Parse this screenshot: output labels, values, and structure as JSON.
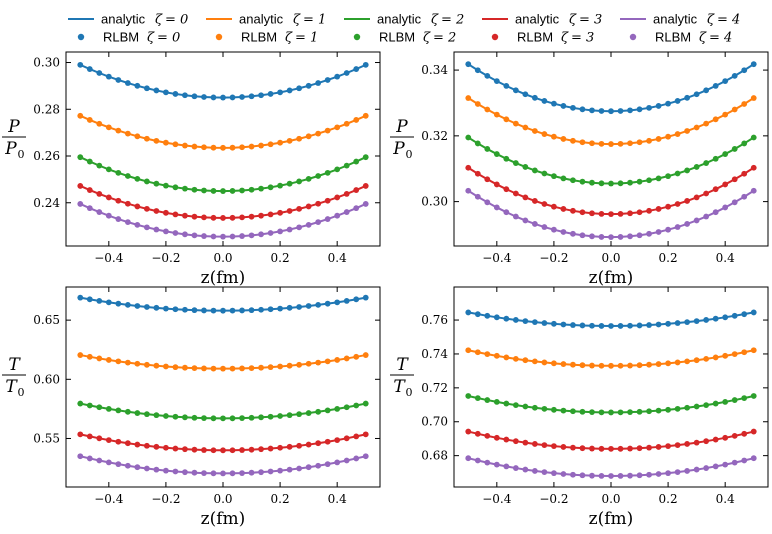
{
  "legend": {
    "entries": [
      {
        "kind": "analytic",
        "label": "analytic",
        "symbol": "ζ",
        "value": "= 0",
        "color": "#1f77b4"
      },
      {
        "kind": "analytic",
        "label": "analytic",
        "symbol": "ζ",
        "value": "= 1",
        "color": "#ff7f0e"
      },
      {
        "kind": "analytic",
        "label": "analytic",
        "symbol": "ζ",
        "value": "= 2",
        "color": "#2ca02c"
      },
      {
        "kind": "analytic",
        "label": "analytic",
        "symbol": "ζ",
        "value": "= 3",
        "color": "#d62728"
      },
      {
        "kind": "analytic",
        "label": "analytic",
        "symbol": "ζ",
        "value": "= 4",
        "color": "#9467bd"
      },
      {
        "kind": "rlbm",
        "label": "RLBM",
        "symbol": "ζ",
        "value": "= 0",
        "color": "#1f77b4"
      },
      {
        "kind": "rlbm",
        "label": "RLBM",
        "symbol": "ζ",
        "value": "= 1",
        "color": "#ff7f0e"
      },
      {
        "kind": "rlbm",
        "label": "RLBM",
        "symbol": "ζ",
        "value": "= 2",
        "color": "#2ca02c"
      },
      {
        "kind": "rlbm",
        "label": "RLBM",
        "symbol": "ζ",
        "value": "= 3",
        "color": "#d62728"
      },
      {
        "kind": "rlbm",
        "label": "RLBM",
        "symbol": "ζ",
        "value": "= 4",
        "color": "#9467bd"
      }
    ]
  },
  "chart_data": [
    {
      "type": "line",
      "panel": "top-left",
      "xlabel": "z(fm)",
      "ylabel_num": "P",
      "ylabel_den": "P",
      "ylabel_den_sub": "0",
      "xlim": [
        -0.55,
        0.55
      ],
      "ylim": [
        0.2215,
        0.3045
      ],
      "xticks": [
        -0.4,
        -0.2,
        0.0,
        0.2,
        0.4
      ],
      "xtick_labels": [
        "−0.4",
        "−0.2",
        "0.0",
        "0.2",
        "0.4"
      ],
      "yticks": [
        0.24,
        0.26,
        0.28,
        0.3
      ],
      "ytick_labels": [
        "0.24",
        "0.26",
        "0.28",
        "0.30"
      ],
      "n_points": 31,
      "x_range": [
        -0.5,
        0.5
      ],
      "series": [
        {
          "name": "ζ = 0",
          "color": "#1f77b4",
          "min": 0.285,
          "edge": 0.299
        },
        {
          "name": "ζ = 1",
          "color": "#ff7f0e",
          "min": 0.2635,
          "edge": 0.2772
        },
        {
          "name": "ζ = 2",
          "color": "#2ca02c",
          "min": 0.245,
          "edge": 0.2595
        },
        {
          "name": "ζ = 3",
          "color": "#d62728",
          "min": 0.2335,
          "edge": 0.2472
        },
        {
          "name": "ζ = 4",
          "color": "#9467bd",
          "min": 0.2255,
          "edge": 0.2395
        }
      ]
    },
    {
      "type": "line",
      "panel": "top-right",
      "xlabel": "z(fm)",
      "ylabel_num": "P",
      "ylabel_den": "P",
      "ylabel_den_sub": "0",
      "xlim": [
        -0.55,
        0.55
      ],
      "ylim": [
        0.2865,
        0.3455
      ],
      "xticks": [
        -0.4,
        -0.2,
        0.0,
        0.2,
        0.4
      ],
      "xtick_labels": [
        "−0.4",
        "−0.2",
        "0.0",
        "0.2",
        "0.4"
      ],
      "yticks": [
        0.3,
        0.32,
        0.34
      ],
      "ytick_labels": [
        "0.30",
        "0.32",
        "0.34"
      ],
      "n_points": 31,
      "x_range": [
        -0.5,
        0.5
      ],
      "series": [
        {
          "name": "ζ = 0",
          "color": "#1f77b4",
          "min": 0.3275,
          "edge": 0.3418
        },
        {
          "name": "ζ = 1",
          "color": "#ff7f0e",
          "min": 0.3175,
          "edge": 0.3315
        },
        {
          "name": "ζ = 2",
          "color": "#2ca02c",
          "min": 0.3055,
          "edge": 0.3195
        },
        {
          "name": "ζ = 3",
          "color": "#d62728",
          "min": 0.2962,
          "edge": 0.3103
        },
        {
          "name": "ζ = 4",
          "color": "#9467bd",
          "min": 0.2892,
          "edge": 0.3033
        }
      ]
    },
    {
      "type": "line",
      "panel": "bottom-left",
      "xlabel": "z(fm)",
      "ylabel_num": "T",
      "ylabel_den": "T",
      "ylabel_den_sub": "0",
      "xlim": [
        -0.55,
        0.55
      ],
      "ylim": [
        0.509,
        0.678
      ],
      "xticks": [
        -0.4,
        -0.2,
        0.0,
        0.2,
        0.4
      ],
      "xtick_labels": [
        "−0.4",
        "−0.2",
        "0.0",
        "0.2",
        "0.4"
      ],
      "yticks": [
        0.55,
        0.6,
        0.65
      ],
      "ytick_labels": [
        "0.55",
        "0.60",
        "0.65"
      ],
      "n_points": 31,
      "x_range": [
        -0.5,
        0.5
      ],
      "series": [
        {
          "name": "ζ = 0",
          "color": "#1f77b4",
          "min": 0.658,
          "edge": 0.669
        },
        {
          "name": "ζ = 1",
          "color": "#ff7f0e",
          "min": 0.609,
          "edge": 0.6205
        },
        {
          "name": "ζ = 2",
          "color": "#2ca02c",
          "min": 0.567,
          "edge": 0.5795
        },
        {
          "name": "ζ = 3",
          "color": "#d62728",
          "min": 0.54,
          "edge": 0.5535
        },
        {
          "name": "ζ = 4",
          "color": "#9467bd",
          "min": 0.5205,
          "edge": 0.535
        }
      ]
    },
    {
      "type": "line",
      "panel": "bottom-right",
      "xlabel": "z(fm)",
      "ylabel_num": "T",
      "ylabel_den": "T",
      "ylabel_den_sub": "0",
      "xlim": [
        -0.55,
        0.55
      ],
      "ylim": [
        0.6615,
        0.7795
      ],
      "xticks": [
        -0.4,
        -0.2,
        0.0,
        0.2,
        0.4
      ],
      "xtick_labels": [
        "−0.4",
        "−0.2",
        "0.0",
        "0.2",
        "0.4"
      ],
      "yticks": [
        0.68,
        0.7,
        0.72,
        0.74,
        0.76
      ],
      "ytick_labels": [
        "0.68",
        "0.70",
        "0.72",
        "0.74",
        "0.76"
      ],
      "n_points": 31,
      "x_range": [
        -0.5,
        0.5
      ],
      "series": [
        {
          "name": "ζ = 0",
          "color": "#1f77b4",
          "min": 0.7565,
          "edge": 0.7645
        },
        {
          "name": "ζ = 1",
          "color": "#ff7f0e",
          "min": 0.733,
          "edge": 0.7422
        },
        {
          "name": "ζ = 2",
          "color": "#2ca02c",
          "min": 0.7055,
          "edge": 0.7152
        },
        {
          "name": "ζ = 3",
          "color": "#d62728",
          "min": 0.684,
          "edge": 0.6942
        },
        {
          "name": "ζ = 4",
          "color": "#9467bd",
          "min": 0.668,
          "edge": 0.6785
        }
      ]
    }
  ]
}
